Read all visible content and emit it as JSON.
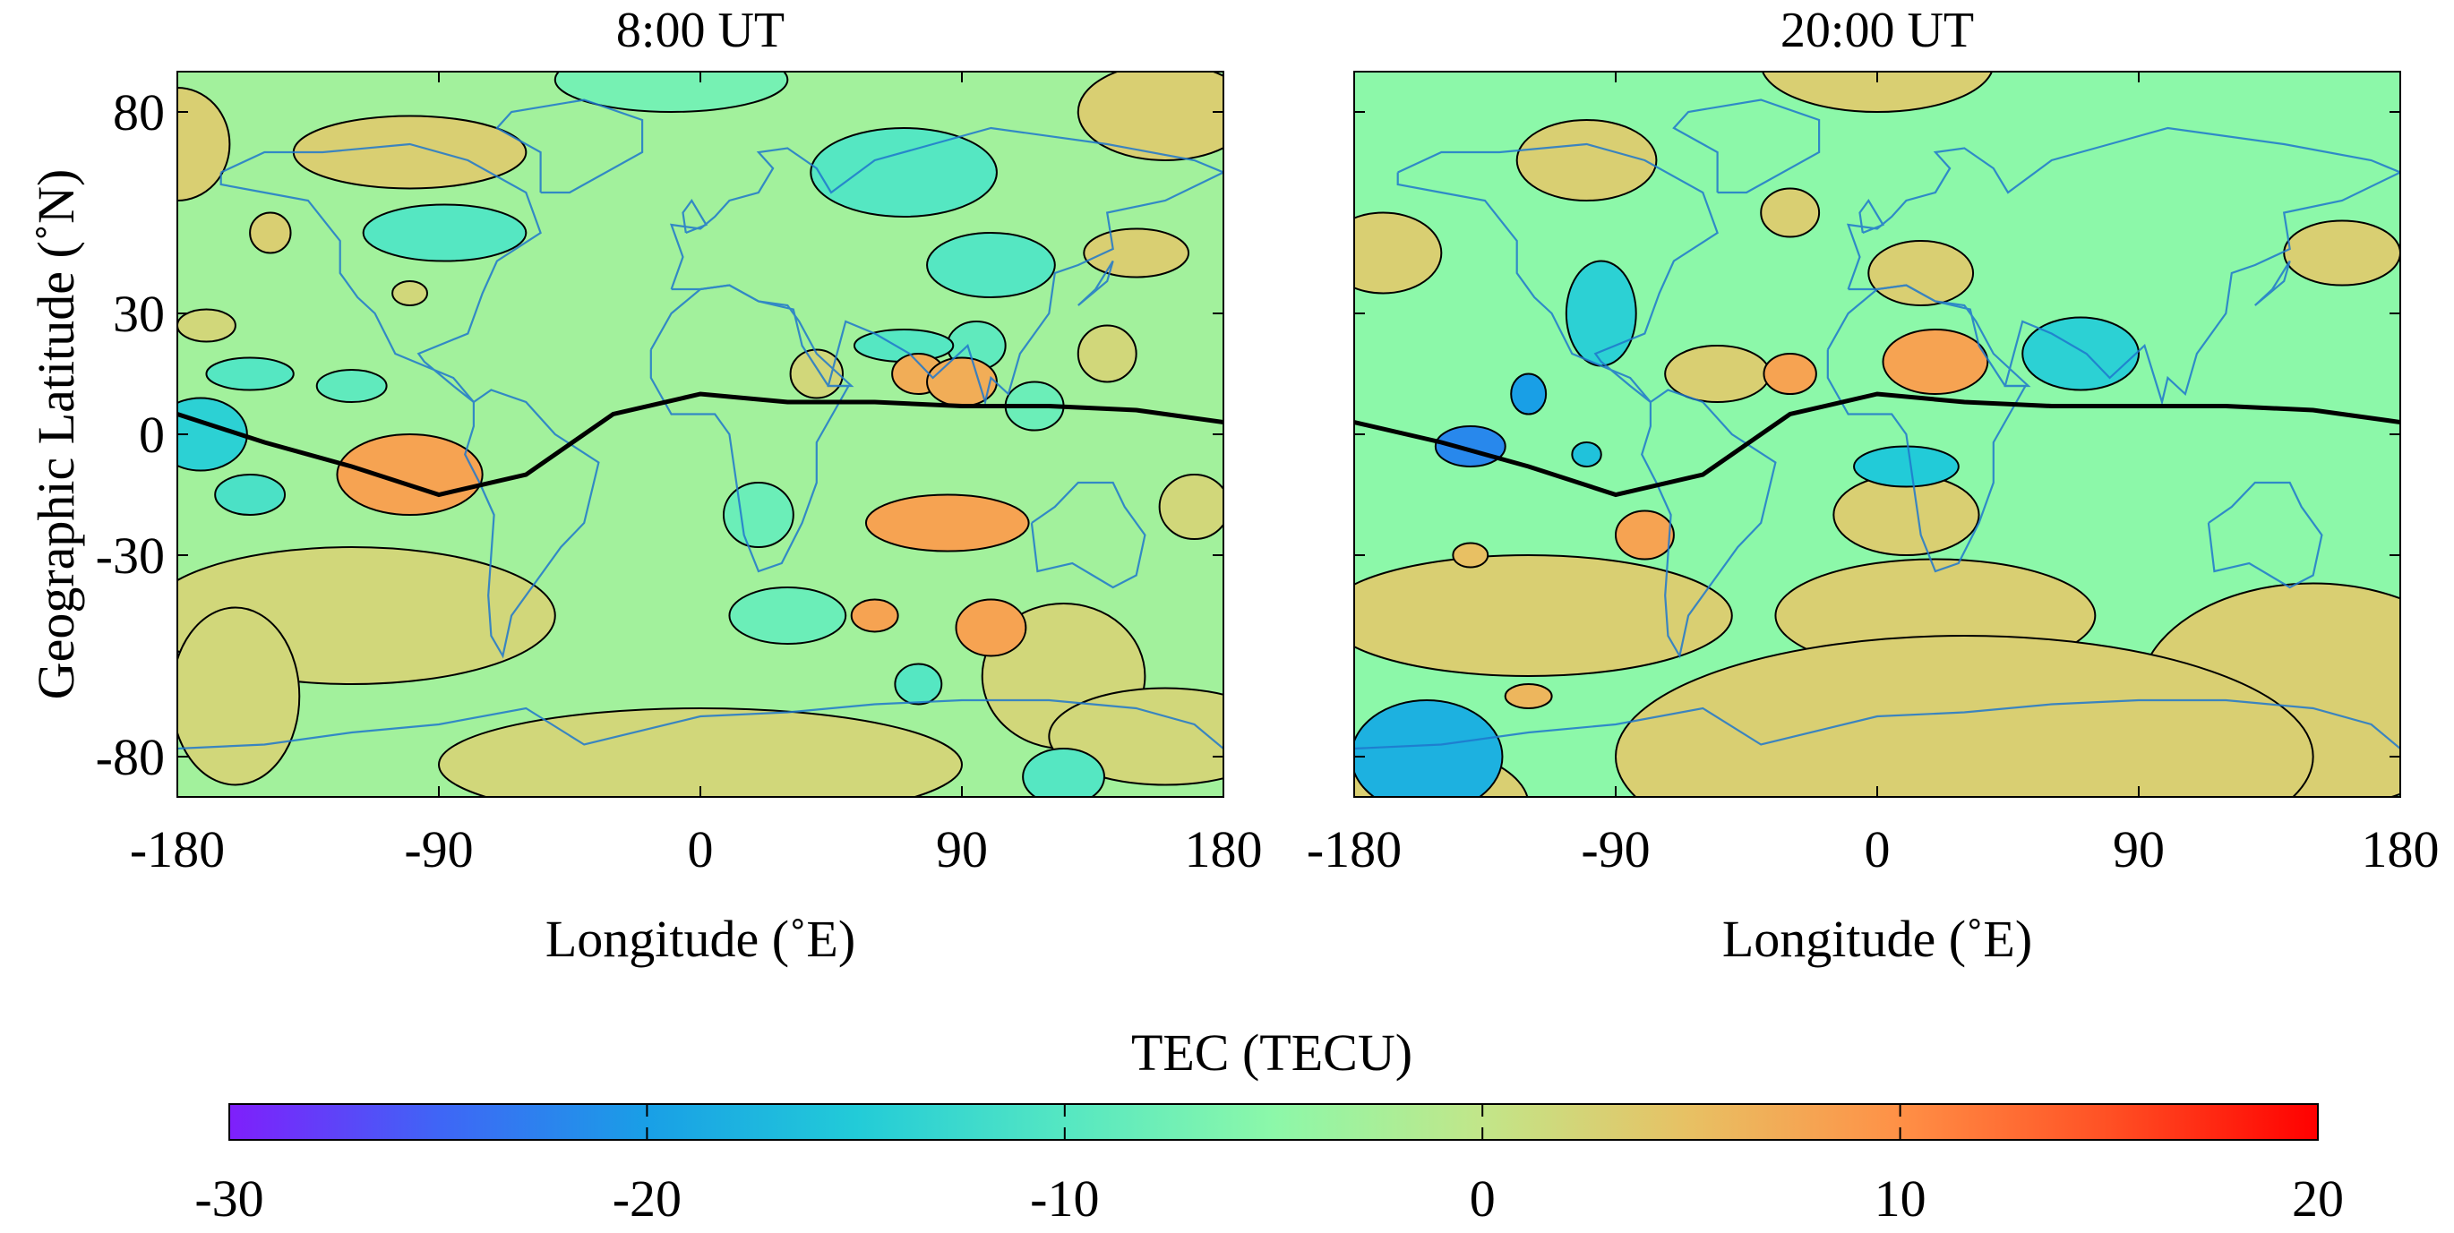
{
  "chart_data": [
    {
      "type": "heatmap",
      "subtype": "filled-contour-map",
      "title": "8:00 UT",
      "xlabel": "Longitude (˚E)",
      "ylabel": "Geographic Latitude (˚N)",
      "xlim": [
        -180,
        180
      ],
      "ylim": [
        -90,
        90
      ],
      "xticks": [
        -180,
        -90,
        0,
        90,
        180
      ],
      "yticks": [
        -80,
        -30,
        0,
        30,
        80
      ],
      "background_value": -3,
      "features": [
        {
          "lon": -180,
          "lat": 72,
          "value": 3
        },
        {
          "lon": -100,
          "lat": 70,
          "value": 3
        },
        {
          "lon": -10,
          "lat": 88,
          "value": -7
        },
        {
          "lon": 70,
          "lat": 65,
          "value": -10
        },
        {
          "lon": 160,
          "lat": 80,
          "value": 3
        },
        {
          "lon": -148,
          "lat": 50,
          "value": 3
        },
        {
          "lon": -88,
          "lat": 50,
          "value": -10
        },
        {
          "lon": -100,
          "lat": 35,
          "value": 2
        },
        {
          "lon": 100,
          "lat": 42,
          "value": -10
        },
        {
          "lon": 150,
          "lat": 45,
          "value": 3
        },
        {
          "lon": -170,
          "lat": 27,
          "value": 2
        },
        {
          "lon": -155,
          "lat": 15,
          "value": -10
        },
        {
          "lon": -120,
          "lat": 12,
          "value": -9
        },
        {
          "lon": 70,
          "lat": 22,
          "value": -10
        },
        {
          "lon": 95,
          "lat": 22,
          "value": -9
        },
        {
          "lon": 140,
          "lat": 20,
          "value": 2
        },
        {
          "lon": 40,
          "lat": 15,
          "value": 2
        },
        {
          "lon": 75,
          "lat": 15,
          "value": 7
        },
        {
          "lon": 90,
          "lat": 13,
          "value": 7
        },
        {
          "lon": 115,
          "lat": 7,
          "value": -8
        },
        {
          "lon": -172,
          "lat": 0,
          "value": -14
        },
        {
          "lon": -155,
          "lat": -15,
          "value": -11
        },
        {
          "lon": -100,
          "lat": -10,
          "value": 8
        },
        {
          "lon": 20,
          "lat": -20,
          "value": -8
        },
        {
          "lon": 85,
          "lat": -22,
          "value": 8
        },
        {
          "lon": 170,
          "lat": -18,
          "value": 2
        },
        {
          "lon": -120,
          "lat": -45,
          "value": 2
        },
        {
          "lon": 30,
          "lat": -45,
          "value": -8
        },
        {
          "lon": 60,
          "lat": -45,
          "value": 8
        },
        {
          "lon": 100,
          "lat": -48,
          "value": 8
        },
        {
          "lon": 75,
          "lat": -62,
          "value": -10
        },
        {
          "lon": 125,
          "lat": -60,
          "value": 2
        },
        {
          "lon": -160,
          "lat": -65,
          "value": 2
        },
        {
          "lon": 0,
          "lat": -82,
          "value": 2
        },
        {
          "lon": 125,
          "lat": -85,
          "value": -10
        },
        {
          "lon": 160,
          "lat": -75,
          "value": 2
        }
      ],
      "magnetic_equator": [
        [
          -180,
          5
        ],
        [
          -150,
          -2
        ],
        [
          -120,
          -8
        ],
        [
          -90,
          -15
        ],
        [
          -60,
          -10
        ],
        [
          -30,
          5
        ],
        [
          0,
          10
        ],
        [
          30,
          8
        ],
        [
          60,
          8
        ],
        [
          90,
          7
        ],
        [
          120,
          7
        ],
        [
          150,
          6
        ],
        [
          180,
          3
        ]
      ]
    },
    {
      "type": "heatmap",
      "subtype": "filled-contour-map",
      "title": "20:00 UT",
      "xlabel": "Longitude (˚E)",
      "xlim": [
        -180,
        180
      ],
      "ylim": [
        -90,
        90
      ],
      "xticks": [
        -180,
        -90,
        0,
        90,
        180
      ],
      "yticks": [
        -80,
        -30,
        0,
        30,
        80
      ],
      "background_value": -5,
      "features": [
        {
          "lon": 0,
          "lat": 92,
          "value": 3
        },
        {
          "lon": -100,
          "lat": 68,
          "value": 3
        },
        {
          "lon": -30,
          "lat": 55,
          "value": 3
        },
        {
          "lon": -170,
          "lat": 45,
          "value": 3
        },
        {
          "lon": -95,
          "lat": 30,
          "value": -14
        },
        {
          "lon": 15,
          "lat": 40,
          "value": 3
        },
        {
          "lon": 160,
          "lat": 45,
          "value": 3
        },
        {
          "lon": -55,
          "lat": 15,
          "value": 3
        },
        {
          "lon": -30,
          "lat": 15,
          "value": 8
        },
        {
          "lon": 20,
          "lat": 18,
          "value": 8
        },
        {
          "lon": 70,
          "lat": 20,
          "value": -14
        },
        {
          "lon": -120,
          "lat": 10,
          "value": -20
        },
        {
          "lon": -140,
          "lat": -3,
          "value": -22
        },
        {
          "lon": -100,
          "lat": -5,
          "value": -16
        },
        {
          "lon": -80,
          "lat": -25,
          "value": 8
        },
        {
          "lon": 10,
          "lat": -20,
          "value": 3
        },
        {
          "lon": 10,
          "lat": -8,
          "value": -15
        },
        {
          "lon": -140,
          "lat": -30,
          "value": 5
        },
        {
          "lon": -120,
          "lat": -65,
          "value": 6
        },
        {
          "lon": -120,
          "lat": -45,
          "value": 3
        },
        {
          "lon": 20,
          "lat": -45,
          "value": 3
        },
        {
          "lon": 150,
          "lat": -65,
          "value": 3
        },
        {
          "lon": -155,
          "lat": -80,
          "value": -18
        },
        {
          "lon": -170,
          "lat": -92,
          "value": 3
        },
        {
          "lon": 30,
          "lat": -80,
          "value": 3
        }
      ],
      "magnetic_equator": [
        [
          -180,
          3
        ],
        [
          -150,
          -2
        ],
        [
          -120,
          -8
        ],
        [
          -90,
          -15
        ],
        [
          -60,
          -10
        ],
        [
          -30,
          5
        ],
        [
          0,
          10
        ],
        [
          30,
          8
        ],
        [
          60,
          7
        ],
        [
          90,
          7
        ],
        [
          120,
          7
        ],
        [
          150,
          6
        ],
        [
          180,
          3
        ]
      ]
    }
  ],
  "colorbar": {
    "label": "TEC (TECU)",
    "range": [
      -30,
      20
    ],
    "ticks": [
      -30,
      -20,
      -10,
      0,
      10,
      20
    ],
    "colors": [
      "#7f1ffb",
      "#3f65f6",
      "#199fe6",
      "#22cbd8",
      "#55e7c2",
      "#8cf8a9",
      "#c2e689",
      "#e8c063",
      "#ff9046",
      "#ff5024",
      "#ff0000"
    ]
  },
  "styles": {
    "contour_color": "#000000",
    "coastline_color": "#1f77cc",
    "equator_color": "#000000"
  }
}
